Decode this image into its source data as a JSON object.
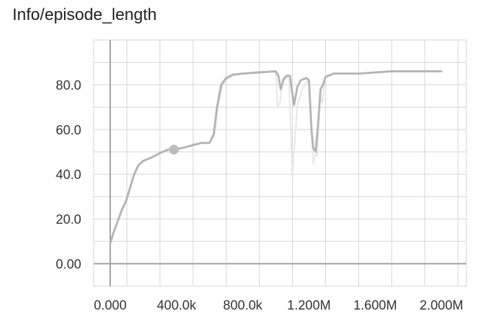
{
  "chart_data": {
    "type": "line",
    "title": "Info/episode_length",
    "xlabel": "",
    "ylabel": "",
    "xlim": [
      -100000,
      2150000
    ],
    "ylim": [
      -10,
      100
    ],
    "grid": true,
    "x_ticks": [
      0,
      400000,
      800000,
      1200000,
      1600000,
      2000000
    ],
    "x_tick_labels": [
      "0.000",
      "400.0k",
      "800.0k",
      "1.200M",
      "1.600M",
      "2.000M"
    ],
    "y_ticks": [
      0,
      20,
      40,
      60,
      80
    ],
    "y_tick_labels": [
      "0.00",
      "20.0",
      "40.0",
      "60.0",
      "80.0"
    ],
    "highlight_point": {
      "x": 385000,
      "y": 51
    },
    "colors": {
      "smoothed": "#b4b4b4",
      "raw": "#e6e6e6",
      "grid": "#d3d3d3",
      "axis": "#9e9e9e",
      "point": "#bdbdbd"
    },
    "series": [
      {
        "role": "raw",
        "x": [
          0,
          20000,
          45000,
          70000,
          95000,
          120000,
          145000,
          170000,
          200000,
          250000,
          300000,
          350000,
          385000,
          450000,
          500000,
          550000,
          600000,
          630000,
          650000,
          680000,
          700000,
          740000,
          800000,
          900000,
          1000000,
          1010000,
          1025000,
          1040000,
          1060000,
          1080000,
          1100000,
          1130000,
          1160000,
          1190000,
          1200000,
          1215000,
          1225000,
          1240000,
          1250000,
          1265000,
          1280000,
          1300000,
          1350000,
          1500000,
          1700000,
          2000000
        ],
        "y": [
          9,
          14,
          19,
          25,
          27,
          33,
          40,
          44,
          46,
          47.5,
          49,
          51,
          51,
          52,
          53,
          54,
          54,
          57,
          70,
          80,
          82,
          84,
          85,
          86,
          85.5,
          70,
          72,
          83,
          84,
          82,
          39,
          71,
          78,
          82,
          80,
          60,
          45,
          49,
          48,
          75,
          72,
          84,
          85,
          85,
          86,
          86
        ]
      },
      {
        "role": "smoothed",
        "x": [
          0,
          20000,
          45000,
          70000,
          95000,
          120000,
          145000,
          170000,
          200000,
          250000,
          300000,
          350000,
          385000,
          450000,
          500000,
          550000,
          600000,
          625000,
          645000,
          670000,
          700000,
          740000,
          800000,
          900000,
          1000000,
          1015000,
          1030000,
          1045000,
          1065000,
          1085000,
          1100000,
          1110000,
          1130000,
          1150000,
          1185000,
          1200000,
          1215000,
          1225000,
          1240000,
          1255000,
          1270000,
          1285000,
          1300000,
          1350000,
          1500000,
          1700000,
          2000000
        ],
        "y": [
          9,
          14,
          19,
          24,
          28,
          34,
          40,
          44,
          46,
          47.5,
          49.5,
          51,
          51,
          52,
          53,
          54,
          54,
          58,
          70,
          80,
          83,
          84.5,
          85,
          85.5,
          86,
          84,
          78,
          82,
          84,
          84,
          76,
          71,
          79,
          82,
          83,
          82,
          60,
          52,
          50,
          62,
          78,
          80,
          83.5,
          85,
          85,
          86,
          86
        ]
      }
    ]
  }
}
